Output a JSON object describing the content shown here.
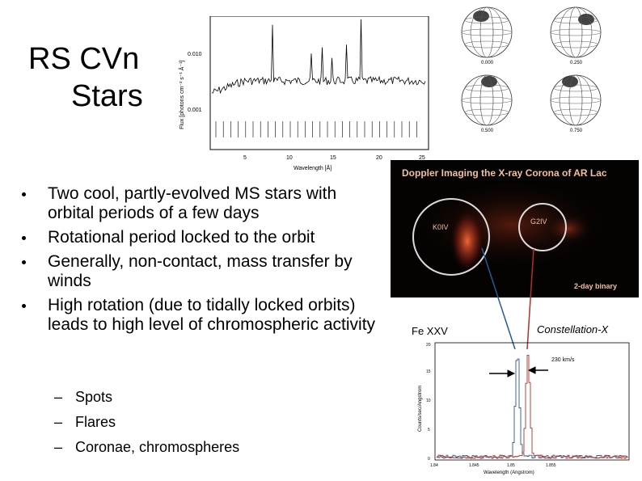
{
  "slide": {
    "title_line1": "RS CVn",
    "title_line2": "Stars"
  },
  "bullets": [
    "Two cool, partly-evolved MS stars with orbital periods of a few days",
    "Rotational period locked to the orbit",
    "Generally, non-contact, mass transfer by winds",
    "High rotation (due to tidally locked orbits) leads to high level of chromospheric activity"
  ],
  "sub_bullets": [
    "Spots",
    "Flares",
    "Coronae, chromospheres"
  ],
  "dash_glyph": "–",
  "spectrum_figure": {
    "ylabel": "Flux [photons cm⁻² s⁻¹ Å⁻¹]",
    "xlabel": "Wavelength [Å]",
    "ytick_upper": "0.010",
    "ytick_lower": "0.001",
    "xticks": [
      "5",
      "10",
      "15",
      "20",
      "25"
    ]
  },
  "spot_maps": {
    "phases": [
      "0.000",
      "0.250",
      "0.500",
      "0.750"
    ]
  },
  "xray_image": {
    "title": "Doppler Imaging the X-ray Corona of AR Lac",
    "star1_label": "K0IV",
    "star2_label": "G2IV",
    "caption": "2-day binary"
  },
  "line_figure": {
    "line_label": "Fe XXV",
    "mission_label": "Constellation-X",
    "velocity_label": "230 km/s",
    "ylabel": "Counts/sec/Angstrom",
    "xlabel": "Wavelength (Angstrom)",
    "xticks": [
      "1.84",
      "1.845",
      "1.85",
      "1.855"
    ],
    "yticks": [
      "0",
      "5",
      "10",
      "15",
      "20"
    ]
  },
  "colors": {
    "text": "#000000",
    "xray_background": "#050302",
    "emission_red": "#c8301a",
    "blue_profile": "#2a5a8c",
    "red_profile": "#b0302a"
  }
}
